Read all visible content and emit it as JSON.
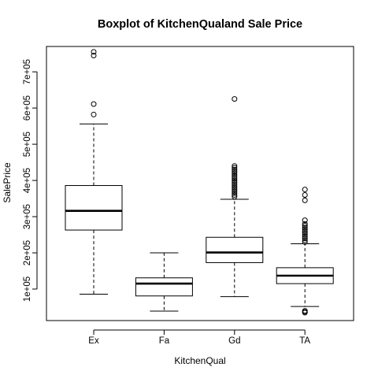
{
  "chart_data": {
    "type": "boxplot",
    "title": "Boxplot of KitchenQualand Sale Price",
    "xlabel": "KitchenQual",
    "ylabel": "SalePrice",
    "categories": [
      "Ex",
      "Fa",
      "Gd",
      "TA"
    ],
    "y_ticks": [
      100000,
      200000,
      300000,
      400000,
      500000,
      600000,
      700000
    ],
    "y_tick_labels": [
      "1e+05",
      "2e+05",
      "3e+05",
      "4e+05",
      "5e+05",
      "6e+05",
      "7e+05"
    ],
    "ylim": [
      13000,
      770000
    ],
    "grid": false,
    "legend": "none",
    "boxes": [
      {
        "category": "Ex",
        "whisker_low": 86000,
        "q1": 263000,
        "median": 316000,
        "q3": 386000,
        "whisker_high": 556000,
        "outliers": [
          582000,
          611000,
          745000,
          755000
        ]
      },
      {
        "category": "Fa",
        "whisker_low": 39000,
        "q1": 81000,
        "median": 115000,
        "q3": 131000,
        "whisker_high": 200000,
        "outliers": []
      },
      {
        "category": "Gd",
        "whisker_low": 79000,
        "q1": 173000,
        "median": 201000,
        "q3": 243000,
        "whisker_high": 348000,
        "outliers": [
          355000,
          360000,
          365000,
          370000,
          375000,
          380000,
          385000,
          390000,
          395000,
          400000,
          405000,
          410000,
          415000,
          420000,
          425000,
          430000,
          435000,
          440000,
          625000
        ]
      },
      {
        "category": "TA",
        "whisker_low": 52000,
        "q1": 115000,
        "median": 137000,
        "q3": 159000,
        "whisker_high": 225000,
        "outliers": [
          35000,
          37000,
          40000,
          230000,
          235000,
          240000,
          245000,
          250000,
          255000,
          260000,
          265000,
          270000,
          275000,
          280000,
          290000,
          345000,
          360000,
          375000
        ]
      }
    ]
  }
}
